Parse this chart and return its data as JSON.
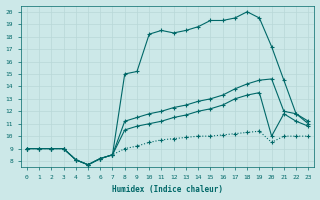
{
  "xlabel": "Humidex (Indice chaleur)",
  "bg_color": "#cce8e8",
  "line_color": "#006868",
  "xlim": [
    -0.5,
    23.5
  ],
  "ylim": [
    7.5,
    20.5
  ],
  "xticks": [
    0,
    1,
    2,
    3,
    4,
    5,
    6,
    7,
    8,
    9,
    10,
    11,
    12,
    13,
    14,
    15,
    16,
    17,
    18,
    19,
    20,
    21,
    22,
    23
  ],
  "yticks": [
    8,
    9,
    10,
    11,
    12,
    13,
    14,
    15,
    16,
    17,
    18,
    19,
    20
  ],
  "line_dotted_x": [
    0,
    1,
    2,
    3,
    4,
    5,
    6,
    7,
    8,
    9,
    10,
    11,
    12,
    13,
    14,
    15,
    16,
    17,
    18,
    19,
    20,
    21,
    22,
    23
  ],
  "line_dotted_y": [
    9,
    9,
    9,
    9,
    8.1,
    7.7,
    8.2,
    8.5,
    9.0,
    9.2,
    9.5,
    9.7,
    9.8,
    9.9,
    10.0,
    10.0,
    10.1,
    10.2,
    10.3,
    10.4,
    9.5,
    10.0,
    10.0,
    10.0
  ],
  "line_lower_x": [
    0,
    1,
    2,
    3,
    4,
    5,
    6,
    7,
    8,
    9,
    10,
    11,
    12,
    13,
    14,
    15,
    16,
    17,
    18,
    19,
    20,
    21,
    22,
    23
  ],
  "line_lower_y": [
    9,
    9,
    9,
    9,
    8.1,
    7.7,
    8.2,
    8.5,
    10.5,
    10.8,
    11.0,
    11.2,
    11.5,
    11.7,
    12.0,
    12.2,
    12.5,
    13.0,
    13.3,
    13.5,
    10.0,
    11.8,
    11.2,
    10.8
  ],
  "line_mid_x": [
    0,
    1,
    2,
    3,
    4,
    5,
    6,
    7,
    8,
    9,
    10,
    11,
    12,
    13,
    14,
    15,
    16,
    17,
    18,
    19,
    20,
    21,
    22,
    23
  ],
  "line_mid_y": [
    9,
    9,
    9,
    9,
    8.1,
    7.7,
    8.2,
    8.5,
    11.2,
    11.5,
    11.8,
    12.0,
    12.3,
    12.5,
    12.8,
    13.0,
    13.3,
    13.8,
    14.2,
    14.5,
    14.6,
    12.0,
    11.8,
    11.0
  ],
  "line_top_x": [
    0,
    2,
    3,
    4,
    5,
    6,
    7,
    8,
    9,
    10,
    11,
    12,
    13,
    14,
    15,
    16,
    17,
    18,
    19,
    20,
    21,
    22,
    23
  ],
  "line_top_y": [
    9,
    9,
    9,
    8.1,
    7.7,
    8.2,
    8.5,
    15.0,
    15.2,
    18.2,
    18.5,
    18.3,
    18.5,
    18.8,
    19.3,
    19.3,
    19.5,
    20.0,
    19.5,
    17.2,
    14.5,
    11.8,
    11.2
  ]
}
